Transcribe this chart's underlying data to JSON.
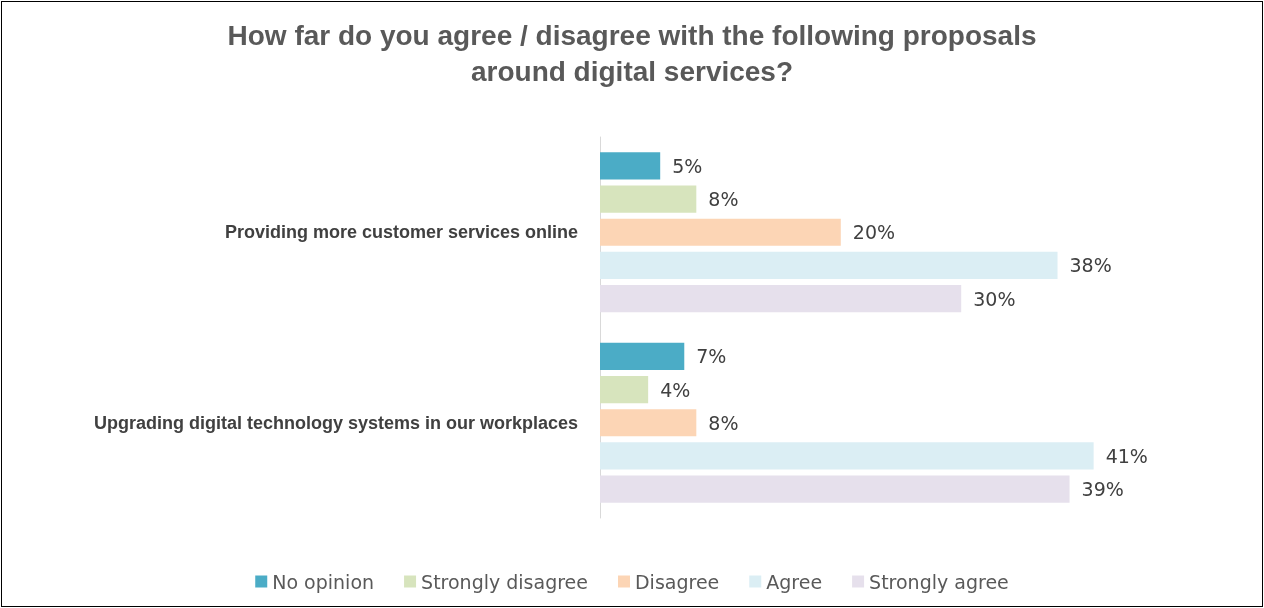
{
  "chart_data": {
    "type": "bar",
    "orientation": "horizontal",
    "title": "How far do you agree / disagree with the following proposals\naround digital services?",
    "categories": [
      "Providing more customer services online",
      "Upgrading digital technology systems in our workplaces"
    ],
    "series": [
      {
        "name": "No opinion",
        "color": "#4bacc6",
        "values": [
          5,
          7
        ],
        "value_labels": [
          "5%",
          "7%"
        ]
      },
      {
        "name": "Strongly disagree",
        "color": "#d7e4bd",
        "values": [
          8,
          4
        ],
        "value_labels": [
          "8%",
          "4%"
        ]
      },
      {
        "name": "Disagree",
        "color": "#fcd5b5",
        "values": [
          20,
          8
        ],
        "value_labels": [
          "20%",
          "8%"
        ]
      },
      {
        "name": "Agree",
        "color": "#dbeef4",
        "values": [
          38,
          41
        ],
        "value_labels": [
          "38%",
          "41%"
        ]
      },
      {
        "name": "Strongly agree",
        "color": "#e6e0ec",
        "values": [
          30,
          39
        ],
        "value_labels": [
          "30%",
          "39%"
        ]
      }
    ],
    "legend": "bottom"
  }
}
